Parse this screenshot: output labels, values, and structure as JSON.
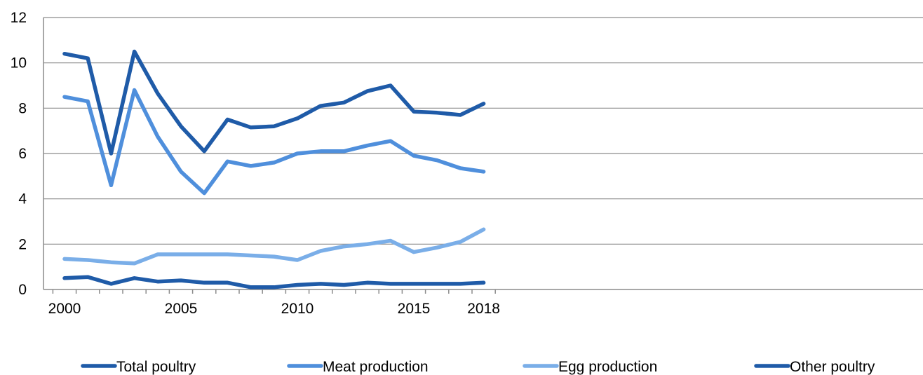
{
  "chart_data": {
    "type": "line",
    "title": "",
    "xlabel": "",
    "ylabel": "",
    "x": [
      2000,
      2001,
      2002,
      2003,
      2004,
      2005,
      2006,
      2007,
      2008,
      2009,
      2010,
      2011,
      2012,
      2013,
      2014,
      2015,
      2016,
      2017,
      2018
    ],
    "x_tick_labels": [
      "2000",
      "2005",
      "2010",
      "2015",
      "2018"
    ],
    "y_tick_labels": [
      "0",
      "2",
      "4",
      "6",
      "8",
      "10",
      "12"
    ],
    "ylim": [
      0,
      12
    ],
    "grid": true,
    "legend_position": "bottom",
    "series": [
      {
        "name": "Total poultry",
        "color": "#1f5ba8",
        "values": [
          10.4,
          10.2,
          6.0,
          10.5,
          8.65,
          7.2,
          6.1,
          7.5,
          7.15,
          7.2,
          7.55,
          8.1,
          8.25,
          8.75,
          9.0,
          7.85,
          7.8,
          7.7,
          8.2
        ]
      },
      {
        "name": "Meat production",
        "color": "#4f8fdc",
        "values": [
          8.5,
          8.3,
          4.6,
          8.8,
          6.75,
          5.2,
          4.25,
          5.65,
          5.45,
          5.6,
          6.0,
          6.1,
          6.1,
          6.35,
          6.55,
          5.9,
          5.7,
          5.35,
          5.2
        ]
      },
      {
        "name": "Egg production",
        "color": "#7aaee8",
        "values": [
          1.35,
          1.3,
          1.2,
          1.15,
          1.55,
          1.55,
          1.55,
          1.55,
          1.5,
          1.45,
          1.3,
          1.7,
          1.9,
          2.0,
          2.15,
          1.65,
          1.85,
          2.1,
          2.65
        ]
      },
      {
        "name": "Other poultry",
        "color": "#1f5ba8",
        "values": [
          0.5,
          0.55,
          0.25,
          0.5,
          0.35,
          0.4,
          0.3,
          0.3,
          0.1,
          0.1,
          0.2,
          0.25,
          0.2,
          0.3,
          0.25,
          0.25,
          0.25,
          0.25,
          0.3
        ]
      }
    ]
  }
}
